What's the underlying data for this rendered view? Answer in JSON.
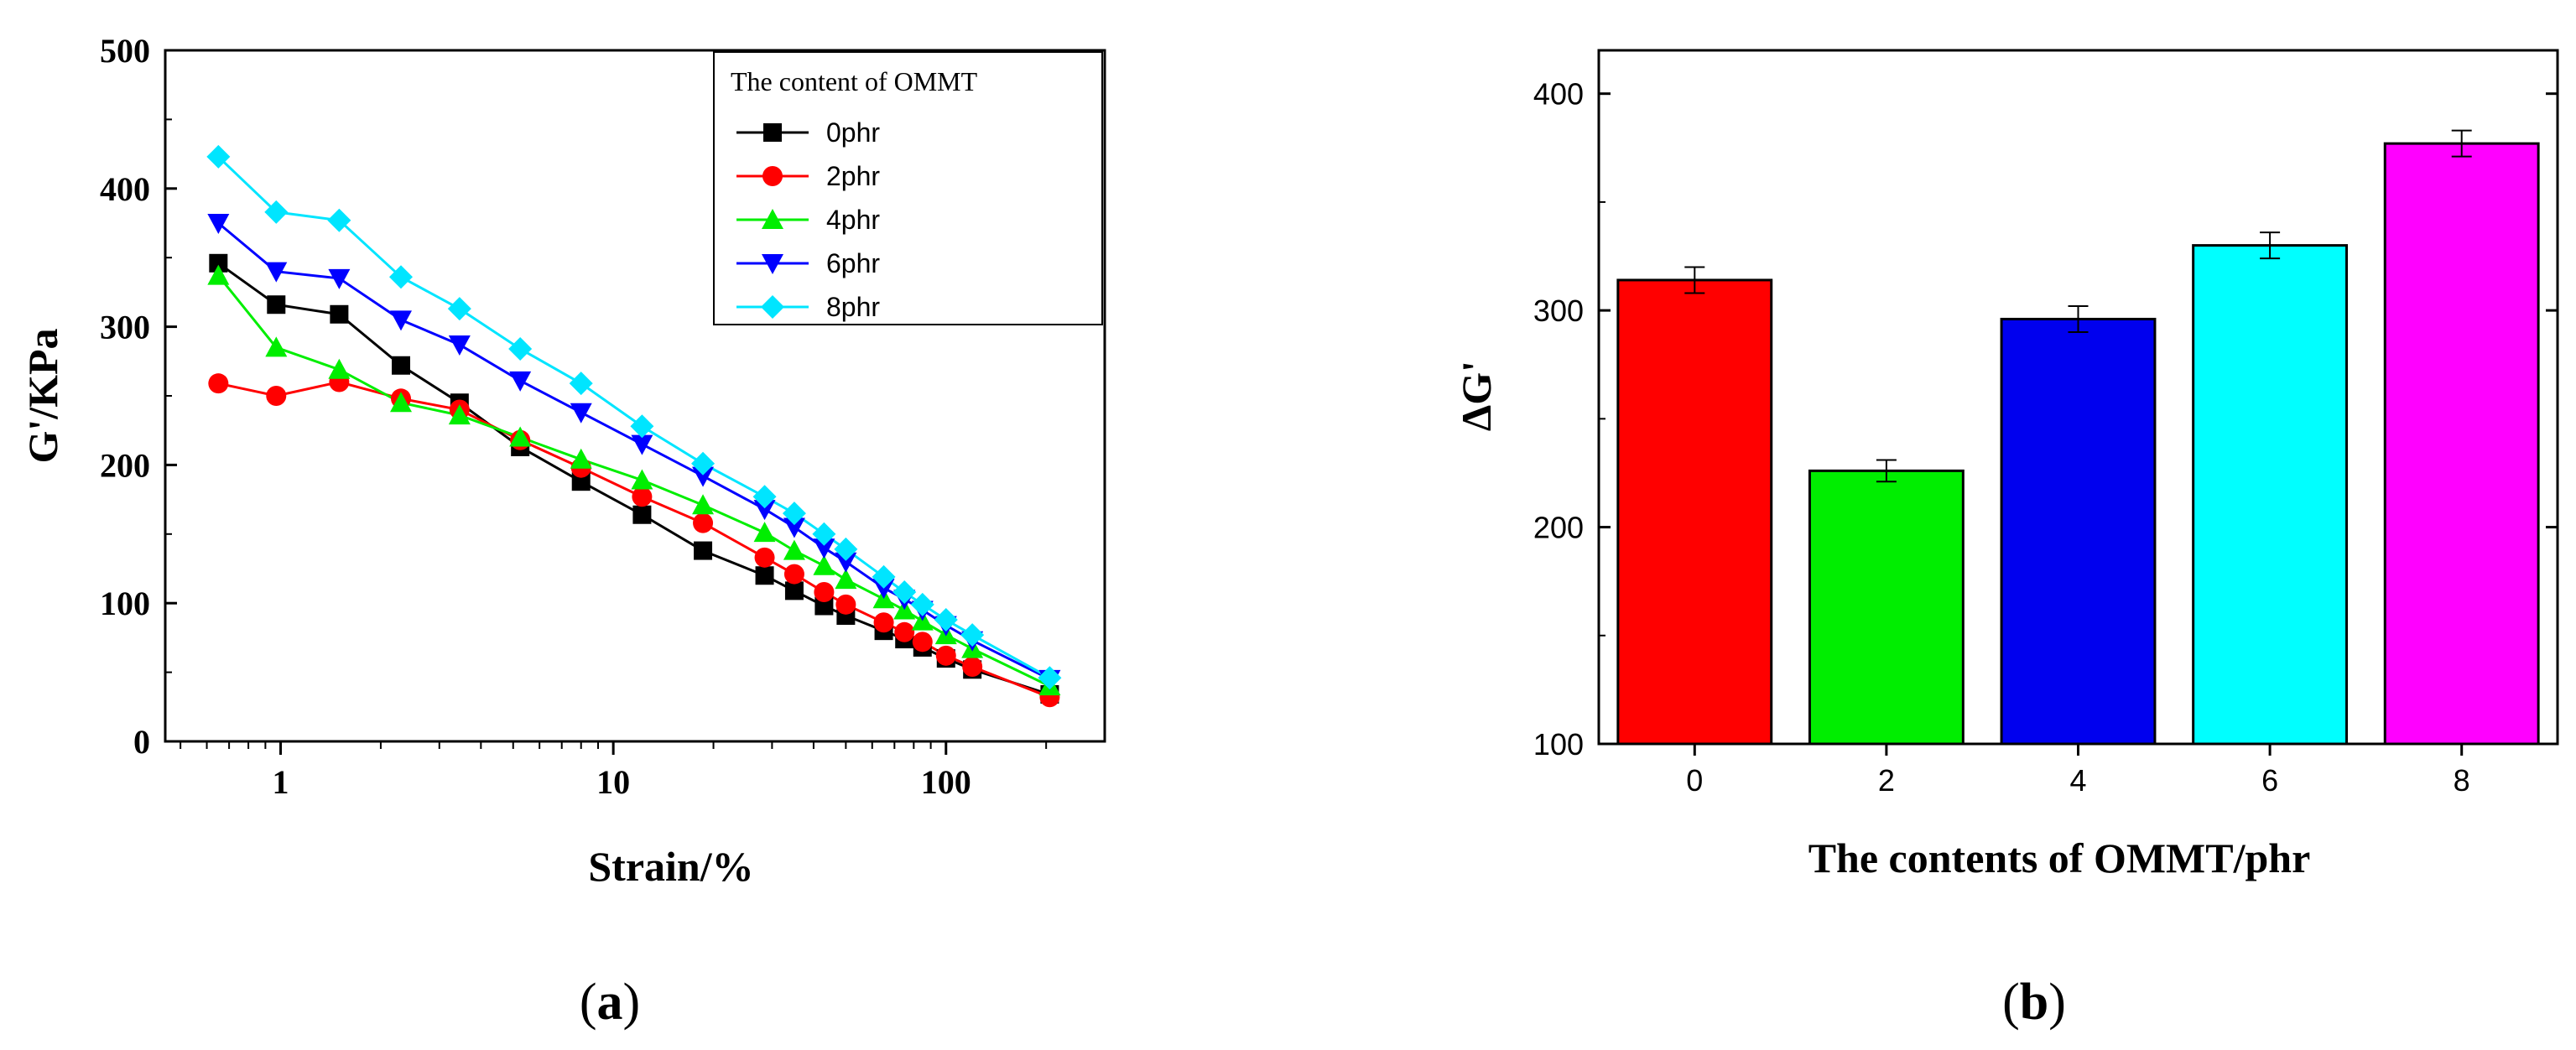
{
  "chart_data": [
    {
      "type": "line",
      "panel_label": "a",
      "panel_label_parts": {
        "open": "(",
        "letter": "a",
        "close": ")"
      },
      "xlabel": "Strain/%",
      "ylabel": "G'/KPa",
      "xscale": "log",
      "xlim": [
        0.45,
        300
      ],
      "ylim": [
        0,
        500
      ],
      "xticks": [
        1,
        10,
        100
      ],
      "xtick_labels": [
        "1",
        "10",
        "100"
      ],
      "yticks": [
        0,
        100,
        200,
        300,
        400,
        500
      ],
      "ytick_labels": [
        "0",
        "100",
        "200",
        "300",
        "400",
        "500"
      ],
      "grid": false,
      "legend_title": "The content of OMMT",
      "legend_position": "top-right",
      "x": [
        0.65,
        0.97,
        1.5,
        2.3,
        3.45,
        5.25,
        8.0,
        12.2,
        18.6,
        28.5,
        35,
        43,
        50,
        65,
        75,
        85,
        100,
        120,
        205
      ],
      "series": [
        {
          "name": "0phr",
          "color": "#000000",
          "marker": "square",
          "values": [
            346,
            316,
            309,
            272,
            245,
            213,
            188,
            164,
            138,
            120,
            109,
            98,
            91,
            80,
            74,
            68,
            60,
            52,
            34
          ]
        },
        {
          "name": "2phr",
          "color": "#ff0000",
          "marker": "circle",
          "values": [
            259,
            250,
            260,
            248,
            240,
            218,
            198,
            177,
            158,
            133,
            121,
            108,
            99,
            86,
            79,
            72,
            62,
            54,
            32
          ]
        },
        {
          "name": "4phr",
          "color": "#00ee00",
          "marker": "triangle-up",
          "values": [
            337,
            285,
            269,
            245,
            236,
            220,
            204,
            189,
            171,
            151,
            138,
            127,
            117,
            103,
            95,
            87,
            77,
            67,
            40
          ]
        },
        {
          "name": "6phr",
          "color": "#0000ff",
          "marker": "triangle-down",
          "values": [
            375,
            340,
            335,
            305,
            287,
            261,
            238,
            215,
            192,
            168,
            155,
            140,
            130,
            111,
            103,
            95,
            84,
            73,
            45
          ]
        },
        {
          "name": "8phr",
          "color": "#00e5ff",
          "marker": "diamond",
          "values": [
            423,
            383,
            377,
            336,
            313,
            284,
            259,
            228,
            201,
            177,
            165,
            150,
            139,
            119,
            108,
            99,
            88,
            77,
            46
          ]
        }
      ]
    },
    {
      "type": "bar",
      "panel_label": "b",
      "panel_label_parts": {
        "open": "(",
        "letter": "b",
        "close": ")"
      },
      "xlabel": "The contents of OMMT/phr",
      "ylabel": "ΔG'",
      "ylim": [
        100,
        420
      ],
      "yticks": [
        100,
        200,
        300,
        400
      ],
      "ytick_labels": [
        "100",
        "200",
        "300",
        "400"
      ],
      "grid": false,
      "categories": [
        "0",
        "2",
        "4",
        "6",
        "8"
      ],
      "values": [
        314,
        226,
        296,
        330,
        377
      ],
      "errors": [
        6,
        5,
        6,
        6,
        6
      ],
      "colors": [
        "#ff0000",
        "#00ee00",
        "#0000ee",
        "#00ffff",
        "#ff00ff"
      ]
    }
  ]
}
